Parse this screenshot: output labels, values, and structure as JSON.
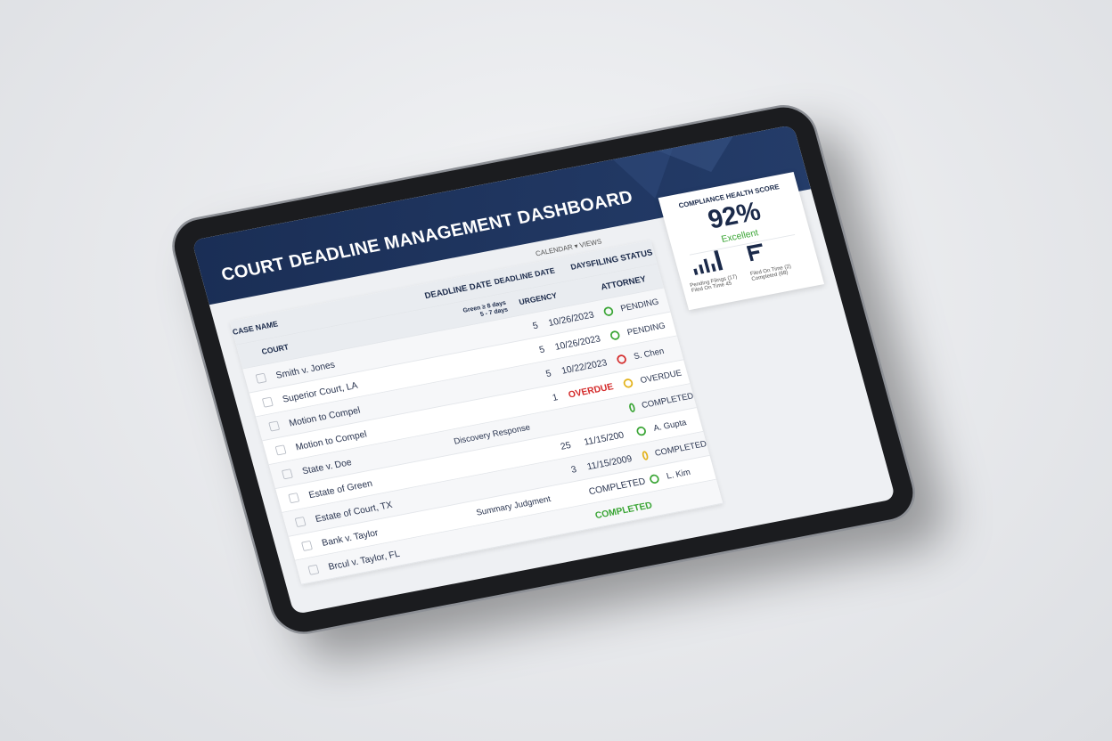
{
  "header": {
    "title": "COURT DEADLINE MANAGEMENT DASHBOARD",
    "toolbar": "CALENDAR ▾ VIEWS"
  },
  "table": {
    "columns": [
      "CASE NAME",
      "DEADLINE DATE",
      "DEADLINE DATE",
      "DAYS",
      "FILING STATUS"
    ],
    "subcolumns": [
      "COURT",
      "URGENCY",
      "ATTORNEY"
    ],
    "legend": [
      "Green ≥ 8 days",
      "5 - 7 days"
    ],
    "rows": [
      {
        "case": "Smith v. Jones",
        "days": 5,
        "date": "10/26/2023",
        "status": "PENDING",
        "urgency": "green"
      },
      {
        "case": "Superior Court, LA",
        "days": 5,
        "date": "10/26/2023",
        "status": "PENDING",
        "urgency": "green"
      },
      {
        "case": "Motion to Compel",
        "days": 5,
        "date": "10/22/2023",
        "status": "S. Chen",
        "urgency": "red"
      },
      {
        "case": "Motion to Compel",
        "days": 1,
        "date": "OVERDUE",
        "date_color": "red",
        "status": "OVERDUE",
        "urgency": "yellow"
      },
      {
        "case": "State v. Doe",
        "type": "Discovery Response",
        "status": "COMPLETED",
        "urgency": "green"
      },
      {
        "case": "Estate of Green",
        "days": 25,
        "date": "11/15/200",
        "status": "A. Gupta",
        "urgency": "green"
      },
      {
        "case": "Estate of Court, TX",
        "days": 3,
        "date": "11/15/2009",
        "status": "COMPLETED",
        "urgency": "yellow"
      },
      {
        "case": "Bank v. Taylor",
        "type": "Summary Judgment",
        "date": "COMPLETED",
        "status": "L. Kim",
        "urgency": "green"
      },
      {
        "case": "Brcul v. Taylor, FL",
        "date": "COMPLETED",
        "date_color": "green"
      }
    ]
  },
  "score_card": {
    "title": "COMPLIANCE HEALTH SCORE",
    "score": "92%",
    "rating": "Excellent",
    "legend": [
      "Pending Filings (17)",
      "Filed On Time (2)",
      "Filed On Time 45",
      "Completed (68)"
    ]
  }
}
